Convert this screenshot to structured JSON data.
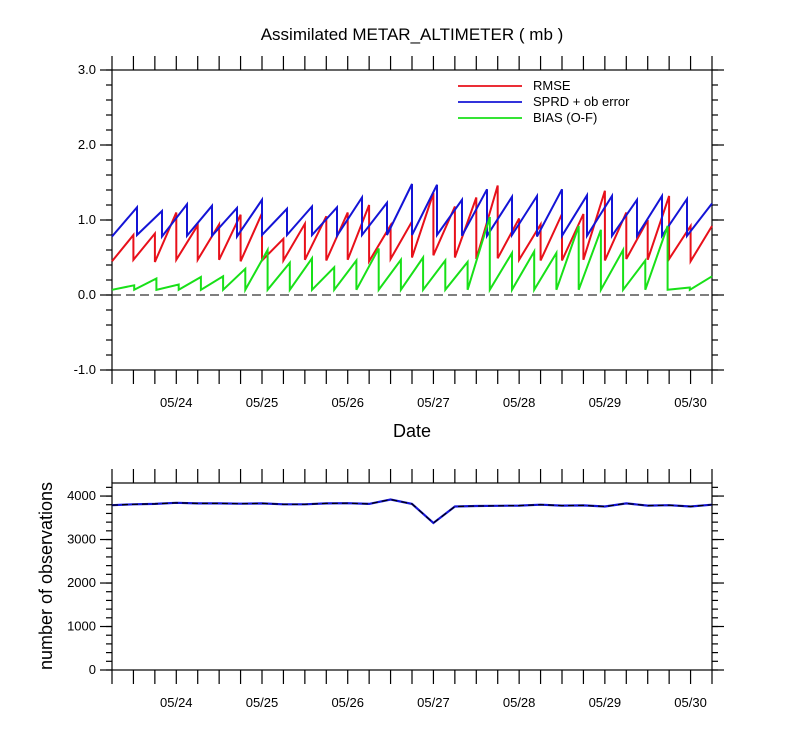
{
  "chart_data": [
    {
      "type": "line",
      "title": "Assimilated METAR_ALTIMETER ( mb )",
      "xlabel": "Date",
      "ylabel": "",
      "ylim": [
        -1.0,
        3.0
      ],
      "yticks": [
        "-1.0",
        "0.0",
        "1.0",
        "2.0",
        "3.0"
      ],
      "xlim": [
        "05/23 06Z",
        "05/30 06Z"
      ],
      "xticks": [
        "05/24",
        "05/25",
        "05/26",
        "05/27",
        "05/28",
        "05/29",
        "05/30"
      ],
      "reference_line": {
        "y": 0.0,
        "style": "dashed"
      },
      "legend_position": "top-right",
      "series": [
        {
          "name": "RMSE",
          "color": "#e8101a",
          "start": "05/23 06Z",
          "segments": [
            [
              0.45,
              0.8
            ],
            [
              0.47,
              0.82
            ],
            [
              0.44,
              1.1
            ],
            [
              0.47,
              0.93
            ],
            [
              0.47,
              0.94
            ],
            [
              0.47,
              1.07
            ],
            [
              0.45,
              1.09
            ],
            [
              0.46,
              0.75
            ],
            [
              0.46,
              0.95
            ],
            [
              0.47,
              1.05
            ],
            [
              0.46,
              1.1
            ],
            [
              0.47,
              1.2
            ],
            [
              0.45,
              0.93
            ],
            [
              0.48,
              0.98
            ],
            [
              0.5,
              1.36
            ],
            [
              0.53,
              1.18
            ],
            [
              0.5,
              1.3
            ],
            [
              0.48,
              1.46
            ],
            [
              0.49,
              1.02
            ],
            [
              0.47,
              0.94
            ],
            [
              0.46,
              1.08
            ],
            [
              0.46,
              1.08
            ],
            [
              0.47,
              1.39
            ],
            [
              0.46,
              1.1
            ],
            [
              0.48,
              1.0
            ],
            [
              0.47,
              1.32
            ],
            [
              0.48,
              0.92
            ],
            [
              0.45,
              0.92
            ]
          ]
        },
        {
          "name": "SPRD + ob error",
          "color": "#1414d6",
          "start": "05/23 06Z",
          "segments": [
            [
              0.78,
              1.17
            ],
            [
              0.8,
              1.12
            ],
            [
              0.78,
              1.21
            ],
            [
              0.79,
              1.19
            ],
            [
              0.79,
              1.16
            ],
            [
              0.78,
              1.27
            ],
            [
              0.8,
              1.15
            ],
            [
              0.8,
              1.18
            ],
            [
              0.8,
              1.17
            ],
            [
              0.79,
              1.3
            ],
            [
              0.8,
              1.23
            ],
            [
              0.8,
              1.48
            ],
            [
              0.8,
              1.47
            ],
            [
              0.8,
              1.27
            ],
            [
              0.79,
              1.41
            ],
            [
              0.79,
              1.31
            ],
            [
              0.8,
              1.32
            ],
            [
              0.78,
              1.41
            ],
            [
              0.79,
              1.33
            ],
            [
              0.79,
              1.32
            ],
            [
              0.79,
              1.27
            ],
            [
              0.79,
              1.32
            ],
            [
              0.79,
              1.28
            ],
            [
              0.79,
              1.22
            ]
          ]
        },
        {
          "name": "BIAS (O-F)",
          "color": "#18e018",
          "start": "05/23 06Z",
          "segments": [
            [
              0.07,
              0.13
            ],
            [
              0.07,
              0.22
            ],
            [
              0.07,
              0.14
            ],
            [
              0.07,
              0.24
            ],
            [
              0.07,
              0.25
            ],
            [
              0.07,
              0.35
            ],
            [
              0.07,
              0.6
            ],
            [
              0.07,
              0.43
            ],
            [
              0.07,
              0.49
            ],
            [
              0.07,
              0.37
            ],
            [
              0.07,
              0.46
            ],
            [
              0.07,
              0.62
            ],
            [
              0.07,
              0.47
            ],
            [
              0.07,
              0.5
            ],
            [
              0.07,
              0.46
            ],
            [
              0.07,
              0.44
            ],
            [
              0.07,
              1.04
            ],
            [
              0.07,
              0.56
            ],
            [
              0.07,
              0.58
            ],
            [
              0.07,
              0.56
            ],
            [
              0.07,
              0.92
            ],
            [
              0.07,
              0.87
            ],
            [
              0.07,
              0.6
            ],
            [
              0.07,
              0.46
            ],
            [
              0.07,
              0.92
            ],
            [
              0.07,
              0.1
            ],
            [
              0.07,
              0.25
            ]
          ]
        }
      ]
    },
    {
      "type": "line",
      "title": "",
      "xlabel": "",
      "ylabel": "number of observations",
      "ylim": [
        0,
        4300
      ],
      "yticks": [
        "0",
        "1000",
        "2000",
        "3000",
        "4000"
      ],
      "xlim": [
        "05/23 06Z",
        "05/30 06Z"
      ],
      "xticks": [
        "05/24",
        "05/25",
        "05/26",
        "05/27",
        "05/28",
        "05/29",
        "05/30"
      ],
      "series": [
        {
          "name": "",
          "color": "#1414d6",
          "x": [
            "05/23 06Z",
            "05/23 12Z",
            "05/23 18Z",
            "05/24 00Z",
            "05/24 06Z",
            "05/24 12Z",
            "05/24 18Z",
            "05/25 00Z",
            "05/25 06Z",
            "05/25 12Z",
            "05/25 18Z",
            "05/26 00Z",
            "05/26 06Z",
            "05/26 12Z",
            "05/26 18Z",
            "05/27 00Z",
            "05/27 06Z",
            "05/27 12Z",
            "05/27 18Z",
            "05/28 00Z",
            "05/28 06Z",
            "05/28 12Z",
            "05/28 18Z",
            "05/29 00Z",
            "05/29 06Z",
            "05/29 12Z",
            "05/29 18Z",
            "05/30 00Z",
            "05/30 06Z"
          ],
          "values": [
            3790,
            3810,
            3820,
            3845,
            3830,
            3830,
            3825,
            3830,
            3810,
            3810,
            3830,
            3835,
            3820,
            3920,
            3820,
            3380,
            3760,
            3770,
            3775,
            3780,
            3800,
            3780,
            3785,
            3760,
            3830,
            3780,
            3790,
            3760,
            3800
          ]
        },
        {
          "name": "",
          "color": "#000000",
          "style": "dashed",
          "x": [
            "05/23 06Z",
            "05/23 12Z",
            "05/23 18Z",
            "05/24 00Z",
            "05/24 06Z",
            "05/24 12Z",
            "05/24 18Z",
            "05/25 00Z",
            "05/25 06Z",
            "05/25 12Z",
            "05/25 18Z",
            "05/26 00Z",
            "05/26 06Z",
            "05/26 12Z",
            "05/26 18Z",
            "05/27 00Z",
            "05/27 06Z",
            "05/27 12Z",
            "05/27 18Z",
            "05/28 00Z",
            "05/28 06Z",
            "05/28 12Z",
            "05/28 18Z",
            "05/29 00Z",
            "05/29 06Z",
            "05/29 12Z",
            "05/29 18Z",
            "05/30 00Z",
            "05/30 06Z"
          ],
          "values": [
            3790,
            3810,
            3820,
            3845,
            3830,
            3830,
            3825,
            3830,
            3810,
            3810,
            3830,
            3835,
            3820,
            3920,
            3820,
            3380,
            3760,
            3770,
            3775,
            3780,
            3800,
            3780,
            3785,
            3760,
            3830,
            3780,
            3790,
            3760,
            3800
          ]
        }
      ]
    }
  ]
}
